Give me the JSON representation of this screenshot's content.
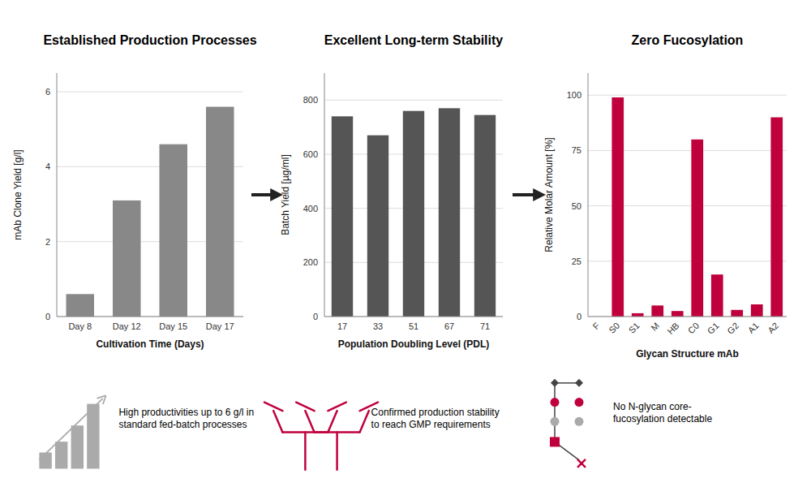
{
  "chart_data": [
    {
      "type": "bar",
      "title": "Established Production Processes",
      "categories": [
        "Day 8",
        "Day 12",
        "Day 15",
        "Day 17"
      ],
      "values": [
        0.6,
        3.1,
        4.6,
        5.6
      ],
      "color": "#888888",
      "xlabel": "Cultivation Time (Days)",
      "ylabel": "mAb Clone Yield [g/l]",
      "ylim": [
        0,
        6.5
      ],
      "yticks": [
        0,
        2,
        4,
        6
      ],
      "grid": true,
      "annotation": "High productivities up to 6 g/l in\nstandard fed-batch processes"
    },
    {
      "type": "bar",
      "title": "Excellent Long-term Stability",
      "categories": [
        "17",
        "33",
        "51",
        "67",
        "71"
      ],
      "values": [
        740,
        670,
        760,
        770,
        745
      ],
      "color": "#555555",
      "xlabel": "Population Doubling Level (PDL)",
      "ylabel": "Batch Yield [µg/ml]",
      "ylim": [
        0,
        900
      ],
      "yticks": [
        0,
        200,
        400,
        600,
        800
      ],
      "grid": true,
      "annotation": "Confirmed production stability\nto reach GMP requirements"
    },
    {
      "type": "bar",
      "title": "Zero Fucosylation",
      "categories": [
        "F",
        "S0",
        "S1",
        "M",
        "HB",
        "C0",
        "G1",
        "G2",
        "A1",
        "A2"
      ],
      "values": [
        0,
        99,
        1.5,
        5,
        2.5,
        80,
        19,
        3,
        5.5,
        90
      ],
      "color": "#C0003C",
      "xlabel": "Glycan Structure mAb",
      "ylabel": "Relative Molar Amount [%]",
      "ylim": [
        0,
        110
      ],
      "yticks": [
        0,
        25,
        50,
        75,
        100
      ],
      "grid": true,
      "annotation": "No N-glycan core-\nfucosylation detectable"
    }
  ]
}
